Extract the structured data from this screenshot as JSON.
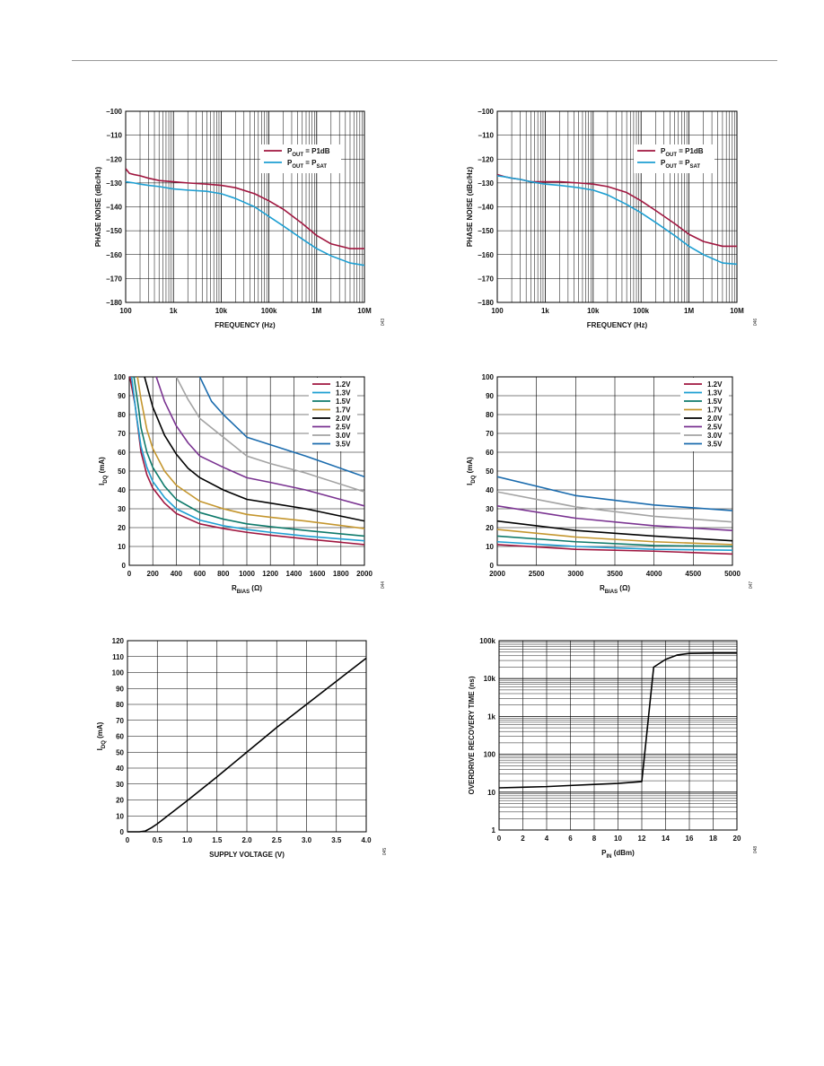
{
  "chart_data": [
    {
      "id": "pn1",
      "type": "line",
      "xscale": "log",
      "xlabel": "FREQUENCY (Hz)",
      "ylabel": "PHASE NOISE (dBc/Hz)",
      "xlim": [
        100,
        10000000
      ],
      "ylim": [
        -180,
        -100
      ],
      "xticks": [
        100,
        1000,
        10000,
        100000,
        1000000,
        10000000
      ],
      "xtick_labels": [
        "100",
        "1k",
        "10k",
        "100k",
        "1M",
        "10M"
      ],
      "yticks": [
        -180,
        -170,
        -160,
        -150,
        -140,
        -130,
        -120,
        -110,
        -100
      ],
      "ytick_labels": [
        "–180",
        "–170",
        "–160",
        "–150",
        "–140",
        "–130",
        "–120",
        "–110",
        "–100"
      ],
      "grid": true,
      "legend_position": "top-right",
      "figure_id": "043",
      "series": [
        {
          "name": "P_OUT = P1dB",
          "legend": {
            "main": "P",
            "sub": "OUT",
            "rest": " = P1dB",
            "sub2": ""
          },
          "color": "#A0163F",
          "x": [
            100,
            120,
            150,
            200,
            300,
            500,
            1000,
            2000,
            5000,
            10000,
            20000,
            50000,
            100000,
            200000,
            500000,
            1000000,
            2000000,
            5000000,
            10000000
          ],
          "y": [
            -124,
            -126,
            -126.5,
            -127,
            -128,
            -129,
            -129.5,
            -130,
            -130.5,
            -131,
            -132,
            -134.5,
            -137.5,
            -141,
            -147,
            -152,
            -155.5,
            -157.5,
            -157.5
          ]
        },
        {
          "name": "P_OUT = P_SAT",
          "legend": {
            "main": "P",
            "sub": "OUT",
            "rest": " = P",
            "sub2": "SAT"
          },
          "color": "#1E9FD2",
          "x": [
            100,
            150,
            200,
            300,
            500,
            1000,
            2000,
            5000,
            10000,
            20000,
            50000,
            100000,
            200000,
            500000,
            1000000,
            2000000,
            5000000,
            10000000
          ],
          "y": [
            -129.5,
            -130,
            -130.5,
            -131,
            -131.5,
            -132.5,
            -133,
            -133.5,
            -134.5,
            -136.5,
            -140,
            -144,
            -148,
            -153.5,
            -157.5,
            -160.5,
            -163.5,
            -164.5
          ]
        }
      ]
    },
    {
      "id": "pn2",
      "type": "line",
      "xscale": "log",
      "xlabel": "FREQUENCY (Hz)",
      "ylabel": "PHASE NOISE (dBc/Hz)",
      "xlim": [
        100,
        10000000
      ],
      "ylim": [
        -180,
        -100
      ],
      "xticks": [
        100,
        1000,
        10000,
        100000,
        1000000,
        10000000
      ],
      "xtick_labels": [
        "100",
        "1k",
        "10k",
        "100k",
        "1M",
        "10M"
      ],
      "yticks": [
        -180,
        -170,
        -160,
        -150,
        -140,
        -130,
        -120,
        -110,
        -100
      ],
      "ytick_labels": [
        "–180",
        "–170",
        "–160",
        "–150",
        "–140",
        "–130",
        "–120",
        "–110",
        "–100"
      ],
      "grid": true,
      "legend_position": "top-right",
      "figure_id": "046",
      "series": [
        {
          "name": "P_OUT = P1dB",
          "legend": {
            "main": "P",
            "sub": "OUT",
            "rest": " = P1dB",
            "sub2": ""
          },
          "color": "#A0163F",
          "x": [
            100,
            150,
            200,
            300,
            500,
            1000,
            2000,
            5000,
            10000,
            20000,
            50000,
            100000,
            200000,
            500000,
            1000000,
            2000000,
            5000000,
            10000000
          ],
          "y": [
            -126.5,
            -127.5,
            -128,
            -128.5,
            -129.5,
            -129.5,
            -129.5,
            -130,
            -130.5,
            -131.5,
            -134,
            -137.5,
            -141.5,
            -147,
            -151.5,
            -154.5,
            -156.5,
            -156.5
          ]
        },
        {
          "name": "P_OUT = P_SAT",
          "legend": {
            "main": "P",
            "sub": "OUT",
            "rest": " = P",
            "sub2": "SAT"
          },
          "color": "#1E9FD2",
          "x": [
            100,
            150,
            200,
            300,
            500,
            1000,
            2000,
            5000,
            10000,
            20000,
            50000,
            100000,
            200000,
            500000,
            1000000,
            2000000,
            5000000,
            10000000
          ],
          "y": [
            -127,
            -127.5,
            -128,
            -128.5,
            -129.5,
            -130.5,
            -131,
            -132,
            -133,
            -135,
            -139,
            -142.5,
            -146.5,
            -152,
            -156.5,
            -160,
            -163.5,
            -164
          ]
        }
      ]
    },
    {
      "id": "iq1",
      "type": "line",
      "xscale": "linear",
      "xlabel": {
        "main": "R",
        "sub": "BIAS",
        "rest": " (Ω)"
      },
      "ylabel": {
        "main": "I",
        "sub": "DQ",
        "rest": " (mA)"
      },
      "xlim": [
        0,
        2000
      ],
      "ylim": [
        0,
        100
      ],
      "xticks": [
        0,
        200,
        400,
        600,
        800,
        1000,
        1200,
        1400,
        1600,
        1800,
        2000
      ],
      "xtick_labels": [
        "0",
        "200",
        "400",
        "600",
        "800",
        "1000",
        "1200",
        "1400",
        "1600",
        "1800",
        "2000"
      ],
      "yticks": [
        0,
        10,
        20,
        30,
        40,
        50,
        60,
        70,
        80,
        90,
        100
      ],
      "ytick_labels": [
        "0",
        "10",
        "20",
        "30",
        "40",
        "50",
        "60",
        "70",
        "80",
        "90",
        "100"
      ],
      "grid": true,
      "legend_position": "top-right",
      "figure_id": "044",
      "series": [
        {
          "name": "1.2V",
          "color": "#A0163F",
          "x": [
            5,
            50,
            100,
            150,
            200,
            300,
            400,
            600,
            800,
            1000,
            1200,
            1500,
            2000
          ],
          "y": [
            100,
            85,
            60,
            48,
            41,
            33,
            27.5,
            22,
            19.5,
            17.5,
            16,
            14,
            11
          ]
        },
        {
          "name": "1.3V",
          "color": "#1E9FD2",
          "x": [
            20,
            60,
            100,
            150,
            200,
            300,
            400,
            600,
            800,
            1000,
            1200,
            1500,
            2000
          ],
          "y": [
            100,
            80,
            63,
            52,
            44.5,
            36,
            30,
            24,
            21,
            19,
            17.5,
            15.5,
            13
          ]
        },
        {
          "name": "1.5V",
          "color": "#0E7A6B",
          "x": [
            40,
            80,
            100,
            150,
            200,
            300,
            400,
            600,
            800,
            1000,
            1200,
            1500,
            2000
          ],
          "y": [
            100,
            83,
            73,
            60,
            52,
            42,
            35,
            28,
            24.5,
            22,
            20.5,
            18.5,
            15.5
          ]
        },
        {
          "name": "1.7V",
          "color": "#C4962E",
          "x": [
            70,
            100,
            150,
            200,
            300,
            400,
            600,
            800,
            1000,
            1200,
            1500,
            2000
          ],
          "y": [
            100,
            88,
            72,
            62,
            50,
            42.5,
            34,
            30,
            27,
            25.5,
            23.5,
            19.5
          ]
        },
        {
          "name": "2.0V",
          "color": "#000000",
          "x": [
            130,
            200,
            300,
            400,
            500,
            600,
            800,
            1000,
            1200,
            1500,
            2000
          ],
          "y": [
            100,
            84,
            69,
            59,
            51.5,
            46.5,
            40,
            35,
            33,
            30,
            23.5
          ]
        },
        {
          "name": "2.5V",
          "color": "#7A3391",
          "x": [
            230,
            300,
            400,
            500,
            600,
            800,
            1000,
            1200,
            1500,
            2000
          ],
          "y": [
            100,
            87,
            74,
            65,
            58,
            52,
            46.5,
            44,
            40,
            31.5
          ]
        },
        {
          "name": "3.0V",
          "color": "#A3A3A3",
          "x": [
            400,
            500,
            600,
            800,
            1000,
            1200,
            1500,
            2000
          ],
          "y": [
            100,
            88,
            78,
            68,
            58,
            54,
            49,
            39
          ]
        },
        {
          "name": "3.5V",
          "color": "#1B6CAE",
          "x": [
            600,
            700,
            800,
            1000,
            1200,
            1500,
            2000
          ],
          "y": [
            100,
            87,
            80,
            68,
            64,
            58,
            47
          ]
        }
      ]
    },
    {
      "id": "iq2",
      "type": "line",
      "xscale": "linear",
      "xlabel": {
        "main": "R",
        "sub": "BIAS",
        "rest": " (Ω)"
      },
      "ylabel": {
        "main": "I",
        "sub": "DQ",
        "rest": " (mA)"
      },
      "xlim": [
        2000,
        5000
      ],
      "ylim": [
        0,
        100
      ],
      "xticks": [
        2000,
        2500,
        3000,
        3500,
        4000,
        4500,
        5000
      ],
      "xtick_labels": [
        "2000",
        "2500",
        "3000",
        "3500",
        "4000",
        "4500",
        "5000"
      ],
      "yticks": [
        0,
        10,
        20,
        30,
        40,
        50,
        60,
        70,
        80,
        90,
        100
      ],
      "ytick_labels": [
        "0",
        "10",
        "20",
        "30",
        "40",
        "50",
        "60",
        "70",
        "80",
        "90",
        "100"
      ],
      "grid": true,
      "legend_position": "top-right",
      "figure_id": "047",
      "series": [
        {
          "name": "1.2V",
          "color": "#A0163F",
          "x": [
            2000,
            3000,
            4000,
            5000
          ],
          "y": [
            11,
            8.5,
            7.5,
            6
          ]
        },
        {
          "name": "1.3V",
          "color": "#1E9FD2",
          "x": [
            2000,
            3000,
            4000,
            5000
          ],
          "y": [
            12.5,
            10,
            8.5,
            8
          ]
        },
        {
          "name": "1.5V",
          "color": "#0E7A6B",
          "x": [
            2000,
            3000,
            4000,
            5000
          ],
          "y": [
            15.5,
            12.5,
            10.5,
            10
          ]
        },
        {
          "name": "1.7V",
          "color": "#C4962E",
          "x": [
            2000,
            3000,
            4000,
            5000
          ],
          "y": [
            19,
            15,
            12.5,
            11
          ]
        },
        {
          "name": "2.0V",
          "color": "#000000",
          "x": [
            2000,
            3000,
            4000,
            5000
          ],
          "y": [
            23.5,
            18.5,
            15.5,
            13
          ]
        },
        {
          "name": "2.5V",
          "color": "#7A3391",
          "x": [
            2000,
            3000,
            4000,
            5000
          ],
          "y": [
            31.5,
            25,
            21,
            18.5
          ]
        },
        {
          "name": "3.0V",
          "color": "#A3A3A3",
          "x": [
            2000,
            3000,
            4000,
            5000
          ],
          "y": [
            39,
            31,
            26,
            23
          ]
        },
        {
          "name": "3.5V",
          "color": "#1B6CAE",
          "x": [
            2000,
            3000,
            4000,
            5000
          ],
          "y": [
            47,
            37,
            32,
            29
          ]
        }
      ]
    },
    {
      "id": "iqv",
      "type": "line",
      "xscale": "linear",
      "xlabel": "SUPPLY VOLTAGE (V)",
      "ylabel": {
        "main": "I",
        "sub": "DQ",
        "rest": " (mA)"
      },
      "xlim": [
        0,
        4
      ],
      "ylim": [
        0,
        120
      ],
      "xticks": [
        0,
        0.5,
        1,
        1.5,
        2,
        2.5,
        3,
        3.5,
        4
      ],
      "xtick_labels": [
        "0",
        "0.5",
        "1.0",
        "1.5",
        "2.0",
        "2.5",
        "3.0",
        "3.5",
        "4.0"
      ],
      "yticks": [
        0,
        10,
        20,
        30,
        40,
        50,
        60,
        70,
        80,
        90,
        100,
        110,
        120
      ],
      "ytick_labels": [
        "0",
        "10",
        "20",
        "30",
        "40",
        "50",
        "60",
        "70",
        "80",
        "90",
        "100",
        "110",
        "120"
      ],
      "grid": true,
      "figure_id": "045",
      "series": [
        {
          "name": "",
          "color": "#000000",
          "x": [
            0,
            0.2,
            0.3,
            0.4,
            0.5,
            1.0,
            1.5,
            2.0,
            2.5,
            3.0,
            3.5,
            4.0
          ],
          "y": [
            0,
            0,
            0.5,
            2.5,
            5,
            19.5,
            34.5,
            50,
            65.5,
            80,
            94.5,
            109
          ]
        }
      ]
    },
    {
      "id": "odr",
      "type": "line",
      "xscale": "linear",
      "yscale": "log",
      "xlabel": {
        "main": "P",
        "sub": "IN",
        "rest": " (dBm)"
      },
      "ylabel": "OVERDRIVE RECOVERY TIME (ns)",
      "xlim": [
        0,
        20
      ],
      "ylim": [
        1,
        100000
      ],
      "xticks": [
        0,
        2,
        4,
        6,
        8,
        10,
        12,
        14,
        16,
        18,
        20
      ],
      "xtick_labels": [
        "0",
        "2",
        "4",
        "6",
        "8",
        "10",
        "12",
        "14",
        "16",
        "18",
        "20"
      ],
      "yticks": [
        1,
        10,
        100,
        1000,
        10000,
        100000
      ],
      "ytick_labels": [
        "1",
        "10",
        "100",
        "1k",
        "10k",
        "100k"
      ],
      "grid": true,
      "figure_id": "048",
      "series": [
        {
          "name": "",
          "color": "#000000",
          "x": [
            0,
            2,
            4,
            6,
            8,
            10,
            11,
            12,
            13,
            14,
            15,
            16,
            18,
            20
          ],
          "y": [
            13,
            13.5,
            14,
            15,
            16,
            17,
            18,
            19,
            20000,
            32000,
            42000,
            46000,
            47000,
            47000
          ]
        }
      ]
    }
  ]
}
